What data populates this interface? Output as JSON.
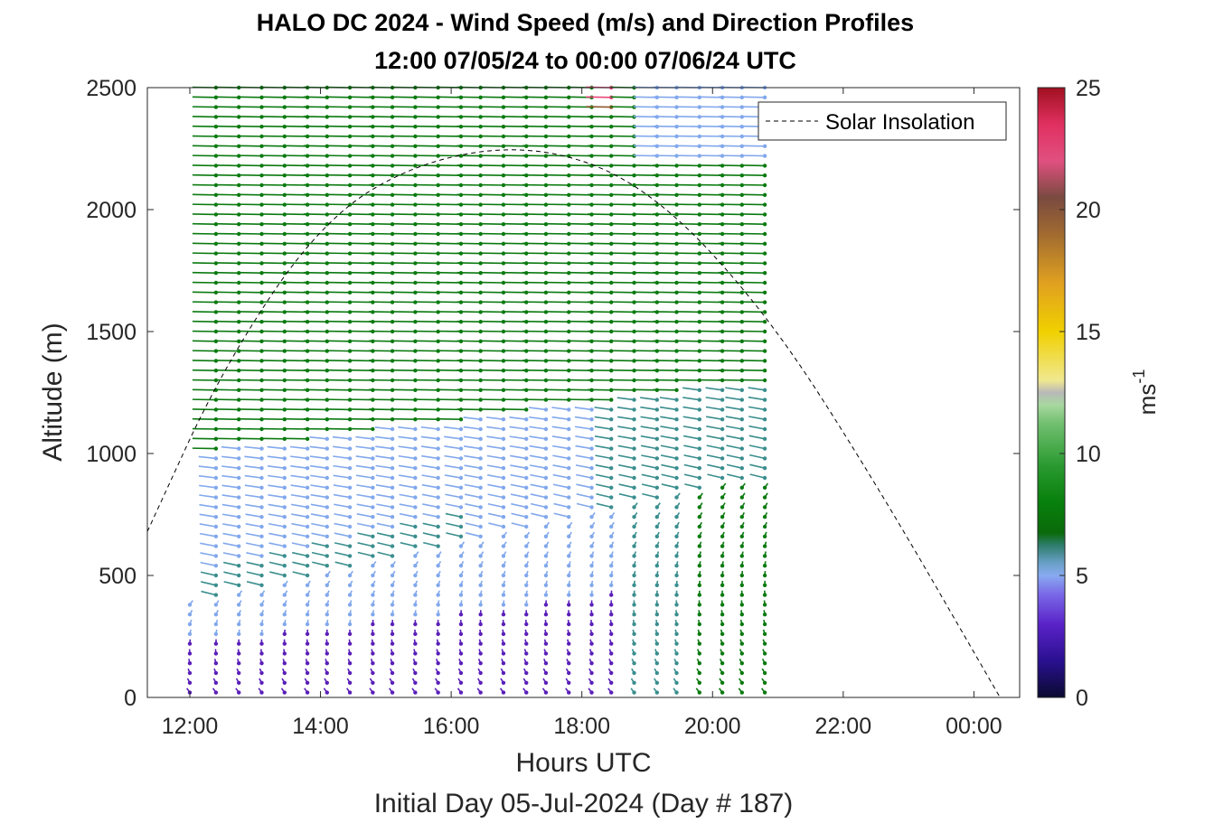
{
  "chart_data": {
    "type": "wind-barb-profile",
    "title": "HALO DC 2024 - Wind Speed (m/s) and Direction Profiles",
    "subtitle": "12:00 07/05/24 to 00:00 07/06/24  UTC",
    "xlabel": "Hours UTC",
    "x_sublabel": "Initial Day 05-Jul-2024 (Day # 187)",
    "ylabel": "Altitude (m)",
    "xlim_hours": [
      11.35,
      24.7
    ],
    "ylim": [
      0,
      2500
    ],
    "x_ticks": [
      {
        "hour": 12,
        "label": "12:00"
      },
      {
        "hour": 14,
        "label": "14:00"
      },
      {
        "hour": 16,
        "label": "16:00"
      },
      {
        "hour": 18,
        "label": "18:00"
      },
      {
        "hour": 20,
        "label": "20:00"
      },
      {
        "hour": 22,
        "label": "22:00"
      },
      {
        "hour": 24,
        "label": "00:00"
      }
    ],
    "y_ticks": [
      0,
      500,
      1000,
      1500,
      2000,
      2500
    ],
    "y_tick_labels": [
      "0",
      "500",
      "1000",
      "1500",
      "2000",
      "2500"
    ],
    "legend": {
      "label": "Solar Insolation",
      "placement": "top-right"
    },
    "colorbar": {
      "label": "ms",
      "label_superscript": "-1",
      "range": [
        0,
        25
      ],
      "ticks": [
        0,
        5,
        10,
        15,
        20,
        25
      ],
      "tick_labels": [
        "0",
        "5",
        "10",
        "15",
        "20",
        "25"
      ]
    },
    "profile_times_hours": [
      12.0,
      12.4,
      12.75,
      13.1,
      13.45,
      13.8,
      14.1,
      14.45,
      14.8,
      15.1,
      15.45,
      15.8,
      16.15,
      16.45,
      16.8,
      17.15,
      17.45,
      17.8,
      18.15,
      18.45,
      18.8,
      19.15,
      19.45,
      19.8,
      20.15,
      20.45,
      20.8
    ],
    "solar_insolation_curve": [
      {
        "hour": 11.35,
        "altitude_equiv": 680
      },
      {
        "hour": 12.5,
        "altitude_equiv": 1350
      },
      {
        "hour": 14.0,
        "altitude_equiv": 1950
      },
      {
        "hour": 15.5,
        "altitude_equiv": 2200
      },
      {
        "hour": 17.3,
        "altitude_equiv": 2270
      },
      {
        "hour": 19.0,
        "altitude_equiv": 2100
      },
      {
        "hour": 20.8,
        "altitude_equiv": 1590
      },
      {
        "hour": 22.5,
        "altitude_equiv": 880
      },
      {
        "hour": 24.4,
        "altitude_equiv": 0
      }
    ],
    "summary_layers": [
      {
        "region": "surface to ~400-900 m (rising through afternoon)",
        "speed_ms": "2-4",
        "direction": "northerly to northwesterly"
      },
      {
        "region": "~400-1000 m",
        "speed_ms": "4-7",
        "direction": "westerly to southwesterly"
      },
      {
        "region": "~1000-2500 m",
        "speed_ms": "7-11",
        "direction": "westerly"
      },
      {
        "region": "~2400-2500 m near 18:15",
        "speed_ms": "18-23",
        "direction": "westerly"
      }
    ],
    "colors": {
      "low": "#5a1fb8",
      "light_blue": "#82a8ec",
      "teal": "#3b8e8e",
      "green": "#0b7a10",
      "light_green": "#6fb86f",
      "orange": "#e0a01c",
      "brown": "#8b5a2b",
      "red": "#c82040",
      "pink": "#e8477a"
    }
  }
}
